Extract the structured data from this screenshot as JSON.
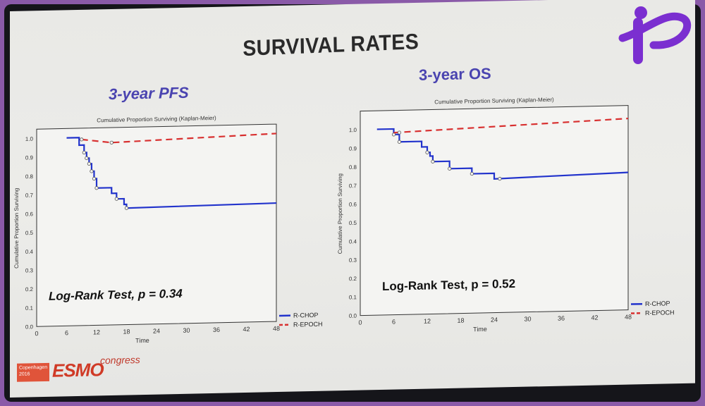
{
  "slide": {
    "title": "SURVIVAL RATES",
    "footer": {
      "city_badge": "Copenhagen 2016",
      "brand": "ESMO",
      "suffix": "congress"
    }
  },
  "colors": {
    "rchop": "#2233cc",
    "repoch": "#d83030",
    "heading": "#4a44b0"
  },
  "chart_data": [
    {
      "type": "line",
      "heading": "3-year PFS",
      "title": "Cumulative Proportion Surviving (Kaplan-Meier)",
      "xlabel": "Time",
      "ylabel": "Cumulative Proportion Surviving",
      "xlim": [
        0,
        48
      ],
      "ylim": [
        0,
        1.05
      ],
      "xticks": [
        0,
        6,
        12,
        18,
        24,
        30,
        36,
        42,
        48
      ],
      "yticks": [
        0.0,
        0.1,
        0.2,
        0.3,
        0.4,
        0.5,
        0.6,
        0.7,
        0.8,
        0.9,
        1.0
      ],
      "annotation": "Log-Rank Test, p =  0.34",
      "series": [
        {
          "name": "R-CHOP",
          "style": "solid",
          "steps": [
            [
              6,
              1.0
            ],
            [
              8.5,
              0.96
            ],
            [
              9.5,
              0.92
            ],
            [
              10,
              0.89
            ],
            [
              10.5,
              0.86
            ],
            [
              11,
              0.82
            ],
            [
              11.5,
              0.78
            ],
            [
              12,
              0.73
            ],
            [
              15,
              0.7
            ],
            [
              16,
              0.67
            ],
            [
              17.5,
              0.64
            ],
            [
              18,
              0.62
            ],
            [
              48,
              0.63
            ]
          ],
          "censor_x": [
            9.5,
            10,
            10.5,
            11,
            11.5,
            12,
            16,
            18
          ]
        },
        {
          "name": "R-EPOCH",
          "style": "dashed",
          "steps": [
            [
              9,
              0.99
            ],
            [
              15,
              0.97
            ],
            [
              48,
              1.0
            ]
          ],
          "censor_x": [
            9,
            15
          ]
        }
      ]
    },
    {
      "type": "line",
      "heading": "3-year OS",
      "title": "Cumulative Proportion Surviving (Kaplan-Meier)",
      "xlabel": "Time",
      "ylabel": "Cumulative Proportion Surviving",
      "xlim": [
        0,
        48
      ],
      "ylim": [
        0,
        1.1
      ],
      "xticks": [
        0,
        6,
        12,
        18,
        24,
        30,
        36,
        42,
        48
      ],
      "yticks": [
        0.0,
        0.1,
        0.2,
        0.3,
        0.4,
        0.5,
        0.6,
        0.7,
        0.8,
        0.9,
        1.0
      ],
      "annotation": "Log-Rank Test, p =  0.52",
      "series": [
        {
          "name": "R-CHOP",
          "style": "solid",
          "steps": [
            [
              3,
              1.0
            ],
            [
              6,
              0.97
            ],
            [
              7,
              0.93
            ],
            [
              11,
              0.9
            ],
            [
              12,
              0.87
            ],
            [
              12.5,
              0.85
            ],
            [
              13,
              0.82
            ],
            [
              16,
              0.78
            ],
            [
              20,
              0.75
            ],
            [
              24,
              0.72
            ],
            [
              48,
              0.74
            ]
          ],
          "censor_x": [
            6,
            7,
            12,
            13,
            16,
            20,
            25
          ]
        },
        {
          "name": "R-EPOCH",
          "style": "dashed",
          "steps": [
            [
              6,
              0.98
            ],
            [
              48,
              1.03
            ]
          ],
          "censor_x": [
            7
          ]
        }
      ]
    }
  ]
}
